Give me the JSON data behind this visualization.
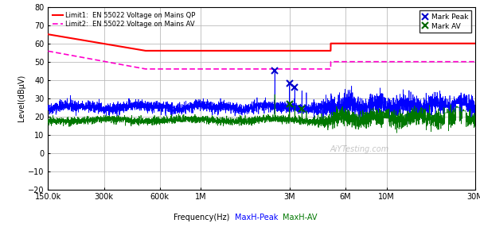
{
  "xlabel": "Frequency(Hz)",
  "ylabel": "Level(dBμV)",
  "xlim": [
    150000,
    30000000
  ],
  "ylim": [
    -20,
    80
  ],
  "yticks": [
    -20,
    -10,
    0,
    10,
    20,
    30,
    40,
    50,
    60,
    70,
    80
  ],
  "xtick_positions": [
    150000,
    300000,
    600000,
    1000000,
    3000000,
    6000000,
    10000000,
    30000000
  ],
  "xtick_labels": [
    "150.0k",
    "300k",
    "600k",
    "1M",
    "3M",
    "6M",
    "10M",
    "30M"
  ],
  "limit1_label": "Limit1:  EN 55022 Voltage on Mains QP",
  "limit2_label": "Limit2:  EN 55022 Voltage on Mains AV",
  "mark_peak_label": "Mark Peak",
  "mark_av_label": "Mark AV",
  "limit1_color": "#FF0000",
  "limit2_color": "#FF00CC",
  "peak_color": "#0000FF",
  "av_color": "#007700",
  "marker_peak_color": "#0000CC",
  "marker_av_color": "#006600",
  "bg_color": "#FFFFFF",
  "grid_color": "#BBBBBB",
  "watermark": "AiYTesting.com",
  "xlabel_peak_color": "#0000FF",
  "xlabel_av_color": "#007700",
  "limit1_start": 65.0,
  "limit1_end_drop": 56.0,
  "limit1_drop_freq": 500000,
  "limit1_flat": 56.0,
  "limit1_step_freq": 5000000,
  "limit1_high": 60.0,
  "limit2_start": 55.8,
  "limit2_end_drop": 46.0,
  "limit2_drop_freq": 500000,
  "limit2_flat": 46.0,
  "limit2_step_freq": 5000000,
  "limit2_high": 50.0
}
